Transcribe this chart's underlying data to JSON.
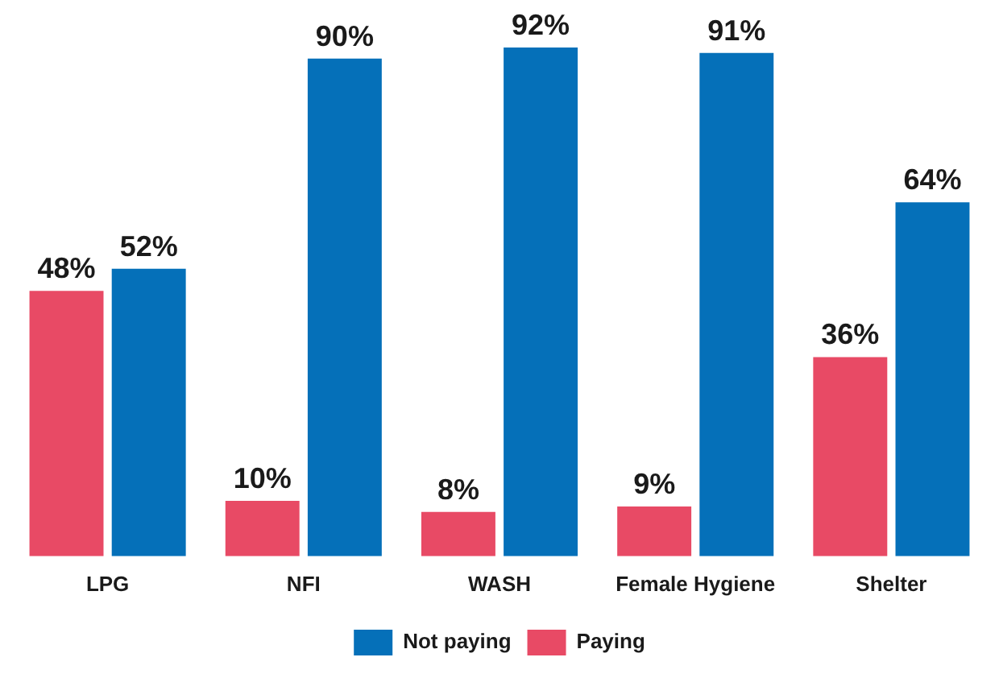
{
  "chart_data": {
    "type": "bar",
    "categories": [
      "LPG",
      "NFI",
      "WASH",
      "Female Hygiene",
      "Shelter"
    ],
    "series": [
      {
        "name": "Paying",
        "color": "#e84a65",
        "values": [
          48,
          10,
          8,
          9,
          36
        ],
        "value_labels": [
          "48%",
          "10%",
          "8%",
          "9%",
          "36%"
        ]
      },
      {
        "name": "Not paying",
        "color": "#0570b9",
        "values": [
          52,
          90,
          92,
          91,
          64
        ],
        "value_labels": [
          "52%",
          "90%",
          "92%",
          "91%",
          "64%"
        ]
      }
    ],
    "tick_labels": "x",
    "legend": "bottom"
  }
}
